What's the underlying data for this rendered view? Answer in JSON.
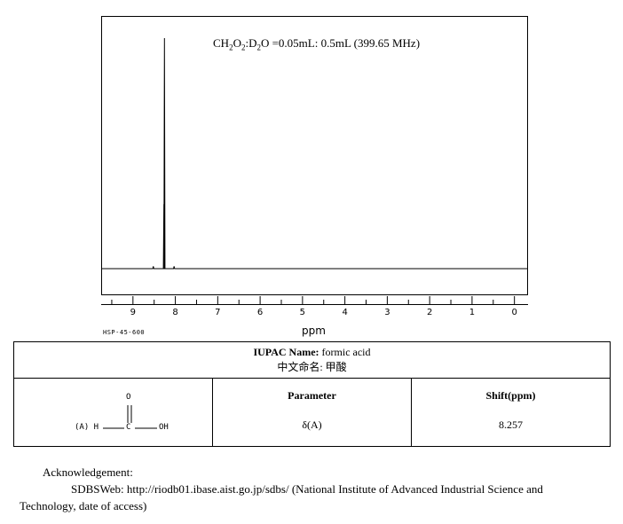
{
  "chart_data": {
    "type": "line",
    "title_parts": [
      "CH",
      "2",
      "O",
      "2",
      ":D",
      "2",
      "O =0.05mL: 0.5mL (399.65 MHz)"
    ],
    "xlabel": "ppm",
    "xlim": [
      9.75,
      -0.3
    ],
    "x_reversed": true,
    "ticks": [
      "9",
      "8",
      "7",
      "6",
      "5",
      "4",
      "3",
      "2",
      "1",
      "0"
    ],
    "grid": false,
    "peaks": [
      {
        "x": 8.257,
        "rel_height": 1.0
      },
      {
        "x": 8.27,
        "rel_height": 0.28
      },
      {
        "x": 8.52,
        "rel_height": 0.01
      },
      {
        "x": 8.03,
        "rel_height": 0.01
      }
    ],
    "code": "HSP-45-600"
  },
  "info": {
    "iupac_label": "IUPAC Name:",
    "iupac_value": " formic acid",
    "chinese_name": "中文命名:  甲酸",
    "structure": {
      "atom_o": "O",
      "atom_h": "(A) H",
      "atom_c": "C",
      "atom_oh": "OH"
    },
    "param_header": "Parameter",
    "shift_header": "Shift(ppm)",
    "rows": [
      {
        "param": "δ(A)",
        "shift": "8.257"
      }
    ]
  },
  "ack": {
    "label": "Acknowledgement:",
    "line1": "SDBSWeb: http://riodb01.ibase.aist.go.jp/sdbs/ (National Institute of Advanced Industrial Science and",
    "line2": "Technology, date of access)"
  },
  "colors": {
    "line": "#000000",
    "background": "#ffffff"
  }
}
